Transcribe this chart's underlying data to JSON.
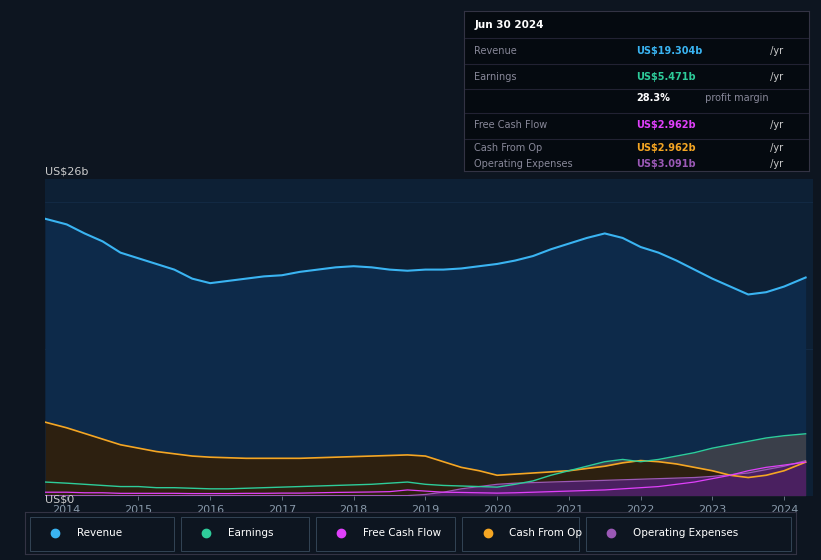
{
  "bg_color": "#0d1520",
  "plot_bg_color": "#0d2035",
  "grid_color": "#1e3a5f",
  "title_box": {
    "date": "Jun 30 2024",
    "rows": [
      {
        "label": "Revenue",
        "value": "US$19.304b",
        "suffix": " /yr",
        "value_color": "#3ab4f2"
      },
      {
        "label": "Earnings",
        "value": "US$5.471b",
        "suffix": " /yr",
        "value_color": "#2ecc9a"
      },
      {
        "label": "",
        "bold": "28.3%",
        "rest": " profit margin"
      },
      {
        "label": "Free Cash Flow",
        "value": "US$2.962b",
        "suffix": " /yr",
        "value_color": "#e040fb"
      },
      {
        "label": "Cash From Op",
        "value": "US$2.962b",
        "suffix": " /yr",
        "value_color": "#f5a623"
      },
      {
        "label": "Operating Expenses",
        "value": "US$3.091b",
        "suffix": " /yr",
        "value_color": "#9b59b6"
      }
    ]
  },
  "ylabel_top": "US$26b",
  "ylabel_bottom": "US$0",
  "x_ticks": [
    2014,
    2015,
    2016,
    2017,
    2018,
    2019,
    2020,
    2021,
    2022,
    2023,
    2024
  ],
  "legend": [
    {
      "label": "Revenue",
      "color": "#3ab4f2"
    },
    {
      "label": "Earnings",
      "color": "#2ecc9a"
    },
    {
      "label": "Free Cash Flow",
      "color": "#e040fb"
    },
    {
      "label": "Cash From Op",
      "color": "#f5a623"
    },
    {
      "label": "Operating Expenses",
      "color": "#9b59b6"
    }
  ],
  "series": {
    "x": [
      2013.7,
      2014.0,
      2014.25,
      2014.5,
      2014.75,
      2015.0,
      2015.25,
      2015.5,
      2015.75,
      2016.0,
      2016.25,
      2016.5,
      2016.75,
      2017.0,
      2017.25,
      2017.5,
      2017.75,
      2018.0,
      2018.25,
      2018.5,
      2018.75,
      2019.0,
      2019.25,
      2019.5,
      2019.75,
      2020.0,
      2020.25,
      2020.5,
      2020.75,
      2021.0,
      2021.25,
      2021.5,
      2021.75,
      2022.0,
      2022.25,
      2022.5,
      2022.75,
      2023.0,
      2023.25,
      2023.5,
      2023.75,
      2024.0,
      2024.3
    ],
    "revenue": [
      24.5,
      24.0,
      23.2,
      22.5,
      21.5,
      21.0,
      20.5,
      20.0,
      19.2,
      18.8,
      19.0,
      19.2,
      19.4,
      19.5,
      19.8,
      20.0,
      20.2,
      20.3,
      20.2,
      20.0,
      19.9,
      20.0,
      20.0,
      20.1,
      20.3,
      20.5,
      20.8,
      21.2,
      21.8,
      22.3,
      22.8,
      23.2,
      22.8,
      22.0,
      21.5,
      20.8,
      20.0,
      19.2,
      18.5,
      17.8,
      18.0,
      18.5,
      19.3
    ],
    "earnings": [
      1.2,
      1.1,
      1.0,
      0.9,
      0.8,
      0.8,
      0.7,
      0.7,
      0.65,
      0.6,
      0.6,
      0.65,
      0.7,
      0.75,
      0.8,
      0.85,
      0.9,
      0.95,
      1.0,
      1.1,
      1.2,
      1.0,
      0.9,
      0.85,
      0.8,
      0.75,
      1.0,
      1.3,
      1.8,
      2.2,
      2.6,
      3.0,
      3.2,
      3.0,
      3.2,
      3.5,
      3.8,
      4.2,
      4.5,
      4.8,
      5.1,
      5.3,
      5.47
    ],
    "free_cash_flow": [
      0.3,
      0.3,
      0.25,
      0.25,
      0.2,
      0.2,
      0.2,
      0.2,
      0.18,
      0.18,
      0.18,
      0.2,
      0.2,
      0.22,
      0.22,
      0.25,
      0.28,
      0.3,
      0.32,
      0.35,
      0.5,
      0.4,
      0.3,
      0.28,
      0.25,
      0.22,
      0.25,
      0.3,
      0.35,
      0.4,
      0.45,
      0.5,
      0.6,
      0.7,
      0.8,
      1.0,
      1.2,
      1.5,
      1.8,
      2.2,
      2.5,
      2.7,
      2.962
    ],
    "cash_from_op": [
      6.5,
      6.0,
      5.5,
      5.0,
      4.5,
      4.2,
      3.9,
      3.7,
      3.5,
      3.4,
      3.35,
      3.3,
      3.3,
      3.3,
      3.3,
      3.35,
      3.4,
      3.45,
      3.5,
      3.55,
      3.6,
      3.5,
      3.0,
      2.5,
      2.2,
      1.8,
      1.9,
      2.0,
      2.1,
      2.2,
      2.4,
      2.6,
      2.9,
      3.1,
      3.0,
      2.8,
      2.5,
      2.2,
      1.8,
      1.6,
      1.8,
      2.2,
      2.962
    ],
    "operating_expenses": [
      0.0,
      0.0,
      0.0,
      0.0,
      0.0,
      0.0,
      0.0,
      0.0,
      0.0,
      0.0,
      0.0,
      0.0,
      0.0,
      0.0,
      0.0,
      0.0,
      0.0,
      0.0,
      0.0,
      0.0,
      0.0,
      0.1,
      0.3,
      0.6,
      0.8,
      1.0,
      1.1,
      1.15,
      1.2,
      1.25,
      1.3,
      1.35,
      1.4,
      1.45,
      1.5,
      1.55,
      1.6,
      1.7,
      1.85,
      2.0,
      2.3,
      2.6,
      3.091
    ]
  }
}
